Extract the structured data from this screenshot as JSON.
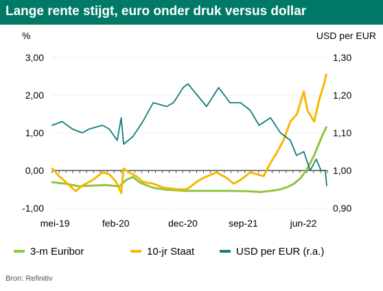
{
  "colors": {
    "title_bg": "#007a66",
    "euribor": "#8cc63f",
    "staat": "#f5b800",
    "usd": "#0e7c7b",
    "zero_line": "#555555",
    "grid": "#bfbfbf"
  },
  "chart_data": {
    "type": "line",
    "title": "Lange rente stijgt, euro onder druk versus dollar",
    "ylabel_left": "%",
    "ylabel_right": "USD per EUR",
    "ylim_left": [
      -1.0,
      3.0
    ],
    "ylim_right": [
      0.9,
      1.3
    ],
    "yticks_left": [
      "3,00",
      "2,00",
      "1,00",
      "0,00",
      "-1,00"
    ],
    "yticks_right": [
      "1,30",
      "1,20",
      "1,10",
      "1,00",
      "0,90"
    ],
    "xlim": [
      "2019-05-01",
      "2022-09-30"
    ],
    "xticks": [
      {
        "label": "mei-19",
        "date": "2019-05-01"
      },
      {
        "label": "feb-20",
        "date": "2020-02-01"
      },
      {
        "label": "dec-20",
        "date": "2020-12-01"
      },
      {
        "label": "sep-21",
        "date": "2021-09-01"
      },
      {
        "label": "jun-22",
        "date": "2022-06-01"
      }
    ],
    "grid": true,
    "legend_position": "bottom",
    "series": [
      {
        "name": "3-m Euribor",
        "axis": "left",
        "color": "#8cc63f",
        "points": [
          [
            "2019-05-01",
            -0.31
          ],
          [
            "2019-07-01",
            -0.35
          ],
          [
            "2019-09-01",
            -0.42
          ],
          [
            "2019-11-01",
            -0.4
          ],
          [
            "2020-01-01",
            -0.39
          ],
          [
            "2020-03-01",
            -0.42
          ],
          [
            "2020-04-01",
            -0.25
          ],
          [
            "2020-05-01",
            -0.17
          ],
          [
            "2020-06-01",
            -0.32
          ],
          [
            "2020-08-01",
            -0.46
          ],
          [
            "2020-10-01",
            -0.51
          ],
          [
            "2021-01-01",
            -0.54
          ],
          [
            "2021-04-01",
            -0.54
          ],
          [
            "2021-07-01",
            -0.54
          ],
          [
            "2021-10-01",
            -0.55
          ],
          [
            "2021-12-01",
            -0.57
          ],
          [
            "2022-02-01",
            -0.53
          ],
          [
            "2022-03-01",
            -0.5
          ],
          [
            "2022-04-01",
            -0.44
          ],
          [
            "2022-05-01",
            -0.35
          ],
          [
            "2022-06-01",
            -0.2
          ],
          [
            "2022-07-01",
            0.05
          ],
          [
            "2022-08-01",
            0.4
          ],
          [
            "2022-09-01",
            0.85
          ],
          [
            "2022-09-25",
            1.15
          ]
        ]
      },
      {
        "name": "10-jr Staat",
        "axis": "left",
        "color": "#f5b800",
        "points": [
          [
            "2019-05-01",
            0.05
          ],
          [
            "2019-06-01",
            -0.15
          ],
          [
            "2019-07-01",
            -0.3
          ],
          [
            "2019-08-15",
            -0.55
          ],
          [
            "2019-09-15",
            -0.4
          ],
          [
            "2019-11-01",
            -0.25
          ],
          [
            "2019-12-15",
            -0.05
          ],
          [
            "2020-01-15",
            -0.1
          ],
          [
            "2020-02-15",
            -0.3
          ],
          [
            "2020-03-09",
            -0.6
          ],
          [
            "2020-03-20",
            0.05
          ],
          [
            "2020-04-15",
            -0.05
          ],
          [
            "2020-05-15",
            -0.15
          ],
          [
            "2020-06-15",
            -0.3
          ],
          [
            "2020-08-01",
            -0.35
          ],
          [
            "2020-09-15",
            -0.45
          ],
          [
            "2020-11-15",
            -0.5
          ],
          [
            "2021-01-01",
            -0.5
          ],
          [
            "2021-02-15",
            -0.3
          ],
          [
            "2021-03-15",
            -0.2
          ],
          [
            "2021-05-15",
            -0.05
          ],
          [
            "2021-07-01",
            -0.2
          ],
          [
            "2021-08-01",
            -0.35
          ],
          [
            "2021-09-01",
            -0.25
          ],
          [
            "2021-10-15",
            -0.05
          ],
          [
            "2021-11-15",
            -0.1
          ],
          [
            "2021-12-15",
            -0.15
          ],
          [
            "2022-01-15",
            0.2
          ],
          [
            "2022-02-15",
            0.5
          ],
          [
            "2022-03-15",
            0.8
          ],
          [
            "2022-04-15",
            1.3
          ],
          [
            "2022-05-15",
            1.5
          ],
          [
            "2022-06-15",
            2.1
          ],
          [
            "2022-07-01",
            1.6
          ],
          [
            "2022-08-01",
            1.3
          ],
          [
            "2022-08-25",
            1.9
          ],
          [
            "2022-09-15",
            2.3
          ],
          [
            "2022-09-25",
            2.55
          ]
        ]
      },
      {
        "name": "USD per EUR (r.a.)",
        "axis": "right",
        "color": "#0e7c7b",
        "points": [
          [
            "2019-05-01",
            1.12
          ],
          [
            "2019-06-15",
            1.13
          ],
          [
            "2019-08-01",
            1.11
          ],
          [
            "2019-09-15",
            1.1
          ],
          [
            "2019-10-15",
            1.11
          ],
          [
            "2019-12-15",
            1.12
          ],
          [
            "2020-01-15",
            1.11
          ],
          [
            "2020-02-20",
            1.08
          ],
          [
            "2020-03-09",
            1.14
          ],
          [
            "2020-03-20",
            1.07
          ],
          [
            "2020-05-01",
            1.09
          ],
          [
            "2020-06-15",
            1.13
          ],
          [
            "2020-08-01",
            1.18
          ],
          [
            "2020-10-01",
            1.17
          ],
          [
            "2020-11-01",
            1.18
          ],
          [
            "2020-12-15",
            1.22
          ],
          [
            "2021-01-06",
            1.23
          ],
          [
            "2021-03-31",
            1.17
          ],
          [
            "2021-05-25",
            1.22
          ],
          [
            "2021-07-15",
            1.18
          ],
          [
            "2021-09-01",
            1.18
          ],
          [
            "2021-10-15",
            1.16
          ],
          [
            "2021-11-24",
            1.12
          ],
          [
            "2022-01-15",
            1.14
          ],
          [
            "2022-03-01",
            1.1
          ],
          [
            "2022-04-15",
            1.08
          ],
          [
            "2022-05-13",
            1.04
          ],
          [
            "2022-06-15",
            1.05
          ],
          [
            "2022-07-14",
            1.0
          ],
          [
            "2022-08-10",
            1.03
          ],
          [
            "2022-09-01",
            1.0
          ],
          [
            "2022-09-20",
            1.0
          ],
          [
            "2022-09-27",
            0.96
          ]
        ]
      }
    ]
  },
  "source_text": "Bron: Refinitiv"
}
